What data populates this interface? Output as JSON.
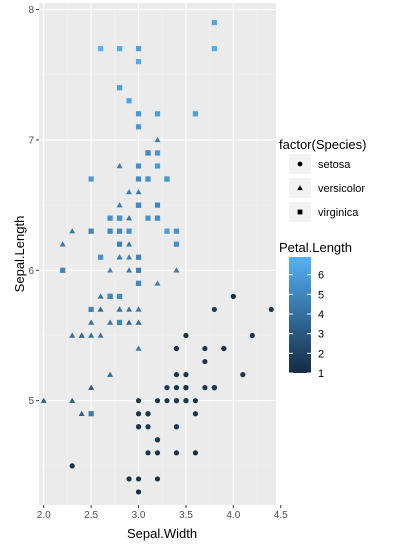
{
  "chart_data": {
    "type": "scatter",
    "xlabel": "Sepal.Width",
    "ylabel": "Sepal.Length",
    "xlim": [
      1.95,
      4.45
    ],
    "ylim": [
      4.2,
      8.05
    ],
    "x_ticks": [
      "2.0",
      "2.5",
      "3.0",
      "3.5",
      "4.0",
      "4.5"
    ],
    "y_ticks": [
      "5",
      "6",
      "7",
      "8"
    ],
    "grid": true,
    "panel_background": "#ebebeb",
    "legend_placement": "right",
    "shape_legend": {
      "title": "factor(Species)",
      "entries": [
        {
          "label": "setosa",
          "shape": "circle"
        },
        {
          "label": "versicolor",
          "shape": "triangle"
        },
        {
          "label": "virginica",
          "shape": "square"
        }
      ]
    },
    "color_legend": {
      "title": "Petal.Length",
      "ticks": [
        "1",
        "2",
        "3",
        "4",
        "5",
        "6"
      ],
      "low_color": "#132b43",
      "high_color": "#56b1f7",
      "min": 1.0,
      "max": 6.9
    },
    "series": [
      {
        "name": "setosa",
        "shape": "circle",
        "points": [
          [
            3.5,
            5.1,
            1.4
          ],
          [
            3.0,
            4.9,
            1.4
          ],
          [
            3.2,
            4.7,
            1.3
          ],
          [
            3.1,
            4.6,
            1.5
          ],
          [
            3.6,
            5.0,
            1.4
          ],
          [
            3.9,
            5.4,
            1.7
          ],
          [
            3.4,
            4.6,
            1.4
          ],
          [
            3.4,
            5.0,
            1.5
          ],
          [
            2.9,
            4.4,
            1.4
          ],
          [
            3.1,
            4.9,
            1.5
          ],
          [
            3.7,
            5.4,
            1.5
          ],
          [
            3.4,
            4.8,
            1.6
          ],
          [
            3.0,
            4.8,
            1.4
          ],
          [
            3.0,
            4.3,
            1.1
          ],
          [
            4.0,
            5.8,
            1.2
          ],
          [
            4.4,
            5.7,
            1.5
          ],
          [
            3.9,
            5.4,
            1.3
          ],
          [
            3.5,
            5.1,
            1.4
          ],
          [
            3.8,
            5.7,
            1.7
          ],
          [
            3.8,
            5.1,
            1.5
          ],
          [
            3.4,
            5.4,
            1.7
          ],
          [
            3.7,
            5.1,
            1.5
          ],
          [
            3.6,
            4.6,
            1.0
          ],
          [
            3.3,
            5.1,
            1.7
          ],
          [
            3.4,
            4.8,
            1.9
          ],
          [
            3.0,
            5.0,
            1.6
          ],
          [
            3.4,
            5.0,
            1.6
          ],
          [
            3.5,
            5.2,
            1.5
          ],
          [
            3.4,
            5.2,
            1.4
          ],
          [
            3.2,
            4.7,
            1.6
          ],
          [
            3.1,
            4.8,
            1.6
          ],
          [
            3.4,
            5.4,
            1.5
          ],
          [
            4.1,
            5.2,
            1.5
          ],
          [
            4.2,
            5.5,
            1.4
          ],
          [
            3.1,
            4.9,
            1.5
          ],
          [
            3.2,
            5.0,
            1.2
          ],
          [
            3.5,
            5.5,
            1.3
          ],
          [
            3.6,
            4.9,
            1.4
          ],
          [
            3.0,
            4.4,
            1.3
          ],
          [
            3.4,
            5.1,
            1.5
          ],
          [
            3.5,
            5.0,
            1.3
          ],
          [
            2.3,
            4.5,
            1.3
          ],
          [
            3.2,
            4.4,
            1.3
          ],
          [
            3.5,
            5.0,
            1.6
          ],
          [
            3.8,
            5.1,
            1.9
          ],
          [
            3.0,
            4.8,
            1.4
          ],
          [
            3.8,
            5.1,
            1.6
          ],
          [
            3.2,
            4.6,
            1.4
          ],
          [
            3.7,
            5.3,
            1.5
          ],
          [
            3.3,
            5.0,
            1.4
          ]
        ]
      },
      {
        "name": "versicolor",
        "shape": "triangle",
        "points": [
          [
            3.2,
            7.0,
            4.7
          ],
          [
            3.2,
            6.4,
            4.5
          ],
          [
            3.1,
            6.9,
            4.9
          ],
          [
            2.3,
            5.5,
            4.0
          ],
          [
            2.8,
            6.5,
            4.6
          ],
          [
            2.8,
            5.7,
            4.5
          ],
          [
            3.3,
            6.3,
            4.7
          ],
          [
            2.4,
            4.9,
            3.3
          ],
          [
            2.9,
            6.6,
            4.6
          ],
          [
            2.7,
            5.2,
            3.9
          ],
          [
            2.0,
            5.0,
            3.5
          ],
          [
            3.0,
            5.9,
            4.2
          ],
          [
            2.2,
            6.0,
            4.0
          ],
          [
            2.9,
            6.1,
            4.7
          ],
          [
            2.9,
            5.6,
            3.6
          ],
          [
            3.1,
            6.7,
            4.4
          ],
          [
            3.0,
            5.6,
            4.5
          ],
          [
            2.7,
            5.8,
            4.1
          ],
          [
            2.2,
            6.2,
            4.5
          ],
          [
            2.5,
            5.6,
            3.9
          ],
          [
            3.2,
            5.9,
            4.8
          ],
          [
            2.8,
            6.1,
            4.0
          ],
          [
            2.5,
            6.3,
            4.9
          ],
          [
            2.8,
            6.1,
            4.7
          ],
          [
            2.9,
            6.4,
            4.3
          ],
          [
            3.0,
            6.6,
            4.4
          ],
          [
            2.8,
            6.8,
            4.8
          ],
          [
            3.0,
            6.7,
            5.0
          ],
          [
            2.9,
            6.0,
            4.5
          ],
          [
            2.6,
            5.7,
            3.5
          ],
          [
            2.4,
            5.5,
            3.8
          ],
          [
            2.4,
            5.5,
            3.7
          ],
          [
            2.7,
            5.8,
            3.9
          ],
          [
            2.7,
            6.0,
            5.1
          ],
          [
            3.0,
            5.4,
            4.5
          ],
          [
            3.4,
            6.0,
            4.5
          ],
          [
            3.1,
            6.7,
            4.7
          ],
          [
            2.3,
            6.3,
            4.4
          ],
          [
            3.0,
            5.6,
            4.1
          ],
          [
            2.5,
            5.5,
            4.0
          ],
          [
            2.6,
            5.5,
            4.4
          ],
          [
            3.0,
            6.1,
            4.6
          ],
          [
            2.6,
            5.8,
            4.0
          ],
          [
            2.3,
            5.0,
            3.3
          ],
          [
            2.7,
            5.6,
            4.2
          ],
          [
            3.0,
            5.7,
            4.2
          ],
          [
            2.9,
            5.7,
            4.2
          ],
          [
            2.9,
            6.2,
            4.3
          ],
          [
            2.5,
            5.1,
            3.0
          ],
          [
            2.8,
            5.7,
            4.1
          ]
        ]
      },
      {
        "name": "virginica",
        "shape": "square",
        "points": [
          [
            3.3,
            6.3,
            6.0
          ],
          [
            2.7,
            5.8,
            5.1
          ],
          [
            3.0,
            7.1,
            5.9
          ],
          [
            2.9,
            6.3,
            5.6
          ],
          [
            3.0,
            6.5,
            5.8
          ],
          [
            3.0,
            7.6,
            6.6
          ],
          [
            2.5,
            4.9,
            4.5
          ],
          [
            2.9,
            7.3,
            6.3
          ],
          [
            2.5,
            6.7,
            5.8
          ],
          [
            3.6,
            7.2,
            6.1
          ],
          [
            3.2,
            6.5,
            5.1
          ],
          [
            2.7,
            6.4,
            5.3
          ],
          [
            3.0,
            6.8,
            5.5
          ],
          [
            2.5,
            5.7,
            5.0
          ],
          [
            2.8,
            5.8,
            5.1
          ],
          [
            3.2,
            6.4,
            5.3
          ],
          [
            3.0,
            6.5,
            5.5
          ],
          [
            3.8,
            7.7,
            6.7
          ],
          [
            2.6,
            7.7,
            6.9
          ],
          [
            2.2,
            6.0,
            5.0
          ],
          [
            3.2,
            6.9,
            5.7
          ],
          [
            2.8,
            5.6,
            4.9
          ],
          [
            2.8,
            7.7,
            6.7
          ],
          [
            2.7,
            6.3,
            4.9
          ],
          [
            3.3,
            6.7,
            5.7
          ],
          [
            3.2,
            7.2,
            6.0
          ],
          [
            2.8,
            6.2,
            4.8
          ],
          [
            3.0,
            6.1,
            4.9
          ],
          [
            2.8,
            6.4,
            5.6
          ],
          [
            3.0,
            7.2,
            5.8
          ],
          [
            2.8,
            7.4,
            6.1
          ],
          [
            3.8,
            7.9,
            6.4
          ],
          [
            2.8,
            6.4,
            5.6
          ],
          [
            2.8,
            6.3,
            5.1
          ],
          [
            2.6,
            6.1,
            5.6
          ],
          [
            3.0,
            7.7,
            6.1
          ],
          [
            3.4,
            6.3,
            5.6
          ],
          [
            3.1,
            6.4,
            5.5
          ],
          [
            3.0,
            6.0,
            4.8
          ],
          [
            3.1,
            6.9,
            5.4
          ],
          [
            3.1,
            6.7,
            5.6
          ],
          [
            3.1,
            6.9,
            5.1
          ],
          [
            2.7,
            5.8,
            5.1
          ],
          [
            3.2,
            6.8,
            5.9
          ],
          [
            3.3,
            6.7,
            5.7
          ],
          [
            3.0,
            6.7,
            5.2
          ],
          [
            2.5,
            6.3,
            5.0
          ],
          [
            3.0,
            6.5,
            5.2
          ],
          [
            3.4,
            6.2,
            5.4
          ],
          [
            3.0,
            5.9,
            5.1
          ]
        ]
      }
    ]
  }
}
